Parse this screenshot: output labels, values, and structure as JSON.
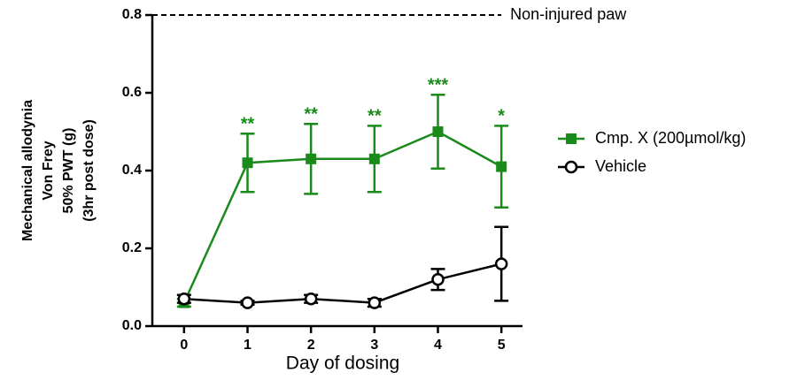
{
  "chart_data": {
    "type": "line",
    "x_label": "Day of dosing",
    "y_label": [
      "Mechanical allodynia",
      "Von Frey",
      "50% PWT (g)",
      "(3hr post dose)"
    ],
    "x": [
      0,
      1,
      2,
      3,
      4,
      5
    ],
    "xlim": [
      -0.5,
      5.5
    ],
    "xticks": [
      0,
      1,
      2,
      3,
      4,
      5
    ],
    "ylim": [
      0,
      0.8
    ],
    "yticks": [
      {
        "value": 0,
        "label": "0.0"
      },
      {
        "value": 0.2,
        "label": "0.2"
      },
      {
        "value": 0.4,
        "label": "0.4"
      },
      {
        "value": 0.6,
        "label": "0.6"
      },
      {
        "value": 0.8,
        "label": "0.8"
      }
    ],
    "reference": {
      "value": 0.8,
      "label": "Non-injured paw"
    },
    "legend": "right",
    "series": [
      {
        "name": "Cmp. X (200µmol/kg)",
        "color": "#1a8a1a",
        "marker": "square",
        "values": [
          0.06,
          0.42,
          0.43,
          0.43,
          0.5,
          0.41
        ],
        "errors": [
          0.01,
          0.075,
          0.09,
          0.085,
          0.095,
          0.105
        ],
        "annotations": [
          null,
          "**",
          "**",
          "**",
          "***",
          "*"
        ]
      },
      {
        "name": "Vehicle",
        "color": "#000000",
        "marker": "open-circle",
        "values": [
          0.07,
          0.06,
          0.07,
          0.06,
          0.12,
          0.16
        ],
        "errors": [
          0.01,
          0.005,
          0.01,
          0.01,
          0.027,
          0.095
        ]
      }
    ]
  }
}
